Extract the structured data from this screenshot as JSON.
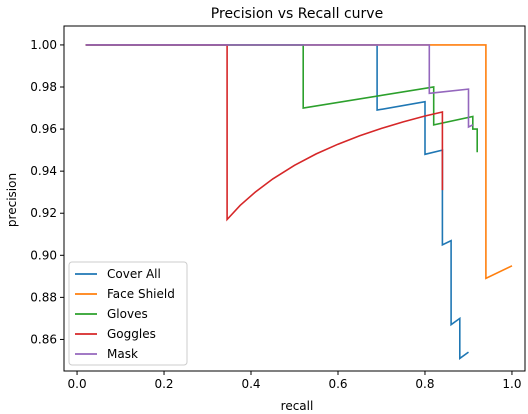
{
  "chart_data": {
    "type": "line",
    "title": "Precision vs Recall curve",
    "xlabel": "recall",
    "ylabel": "precision",
    "xlim": [
      -0.03,
      1.03
    ],
    "ylim": [
      0.845,
      1.009
    ],
    "xticks": [
      0.0,
      0.2,
      0.4,
      0.6,
      0.8,
      1.0
    ],
    "xtick_labels": [
      "0.0",
      "0.2",
      "0.4",
      "0.6",
      "0.8",
      "1.0"
    ],
    "yticks": [
      0.86,
      0.88,
      0.9,
      0.92,
      0.94,
      0.96,
      0.98,
      1.0
    ],
    "ytick_labels": [
      "0.86",
      "0.88",
      "0.90",
      "0.92",
      "0.94",
      "0.96",
      "0.98",
      "1.00"
    ],
    "grid": false,
    "legend_position": "lower-left",
    "series": [
      {
        "name": "Cover All",
        "color": "#1f77b4",
        "points": [
          [
            0.02,
            1.0
          ],
          [
            0.69,
            1.0
          ],
          [
            0.69,
            0.969
          ],
          [
            0.8,
            0.973
          ],
          [
            0.8,
            0.948
          ],
          [
            0.84,
            0.95
          ],
          [
            0.84,
            0.905
          ],
          [
            0.86,
            0.907
          ],
          [
            0.86,
            0.867
          ],
          [
            0.88,
            0.87
          ],
          [
            0.88,
            0.851
          ],
          [
            0.9,
            0.854
          ]
        ]
      },
      {
        "name": "Face Shield",
        "color": "#ff7f0e",
        "points": [
          [
            0.02,
            1.0
          ],
          [
            0.94,
            1.0
          ],
          [
            0.94,
            0.889
          ],
          [
            1.0,
            0.895
          ]
        ]
      },
      {
        "name": "Gloves",
        "color": "#2ca02c",
        "points": [
          [
            0.02,
            1.0
          ],
          [
            0.52,
            1.0
          ],
          [
            0.52,
            0.97
          ],
          [
            0.82,
            0.98
          ],
          [
            0.82,
            0.962
          ],
          [
            0.91,
            0.966
          ],
          [
            0.91,
            0.96
          ],
          [
            0.92,
            0.96
          ],
          [
            0.92,
            0.949
          ]
        ]
      },
      {
        "name": "Goggles",
        "color": "#d62728",
        "points": [
          [
            0.02,
            1.0
          ],
          [
            0.345,
            1.0
          ],
          [
            0.345,
            0.917
          ],
          [
            0.375,
            0.9237
          ],
          [
            0.41,
            0.9301
          ],
          [
            0.45,
            0.9363
          ],
          [
            0.5,
            0.9428
          ],
          [
            0.55,
            0.9482
          ],
          [
            0.6,
            0.9528
          ],
          [
            0.65,
            0.9568
          ],
          [
            0.7,
            0.9603
          ],
          [
            0.75,
            0.9634
          ],
          [
            0.8,
            0.9662
          ],
          [
            0.84,
            0.9681
          ],
          [
            0.84,
            0.931
          ]
        ]
      },
      {
        "name": "Mask",
        "color": "#9467bd",
        "points": [
          [
            0.02,
            1.0
          ],
          [
            0.81,
            1.0
          ],
          [
            0.81,
            0.977
          ],
          [
            0.9,
            0.979
          ],
          [
            0.9,
            0.961
          ],
          [
            0.91,
            0.962
          ]
        ]
      }
    ]
  }
}
